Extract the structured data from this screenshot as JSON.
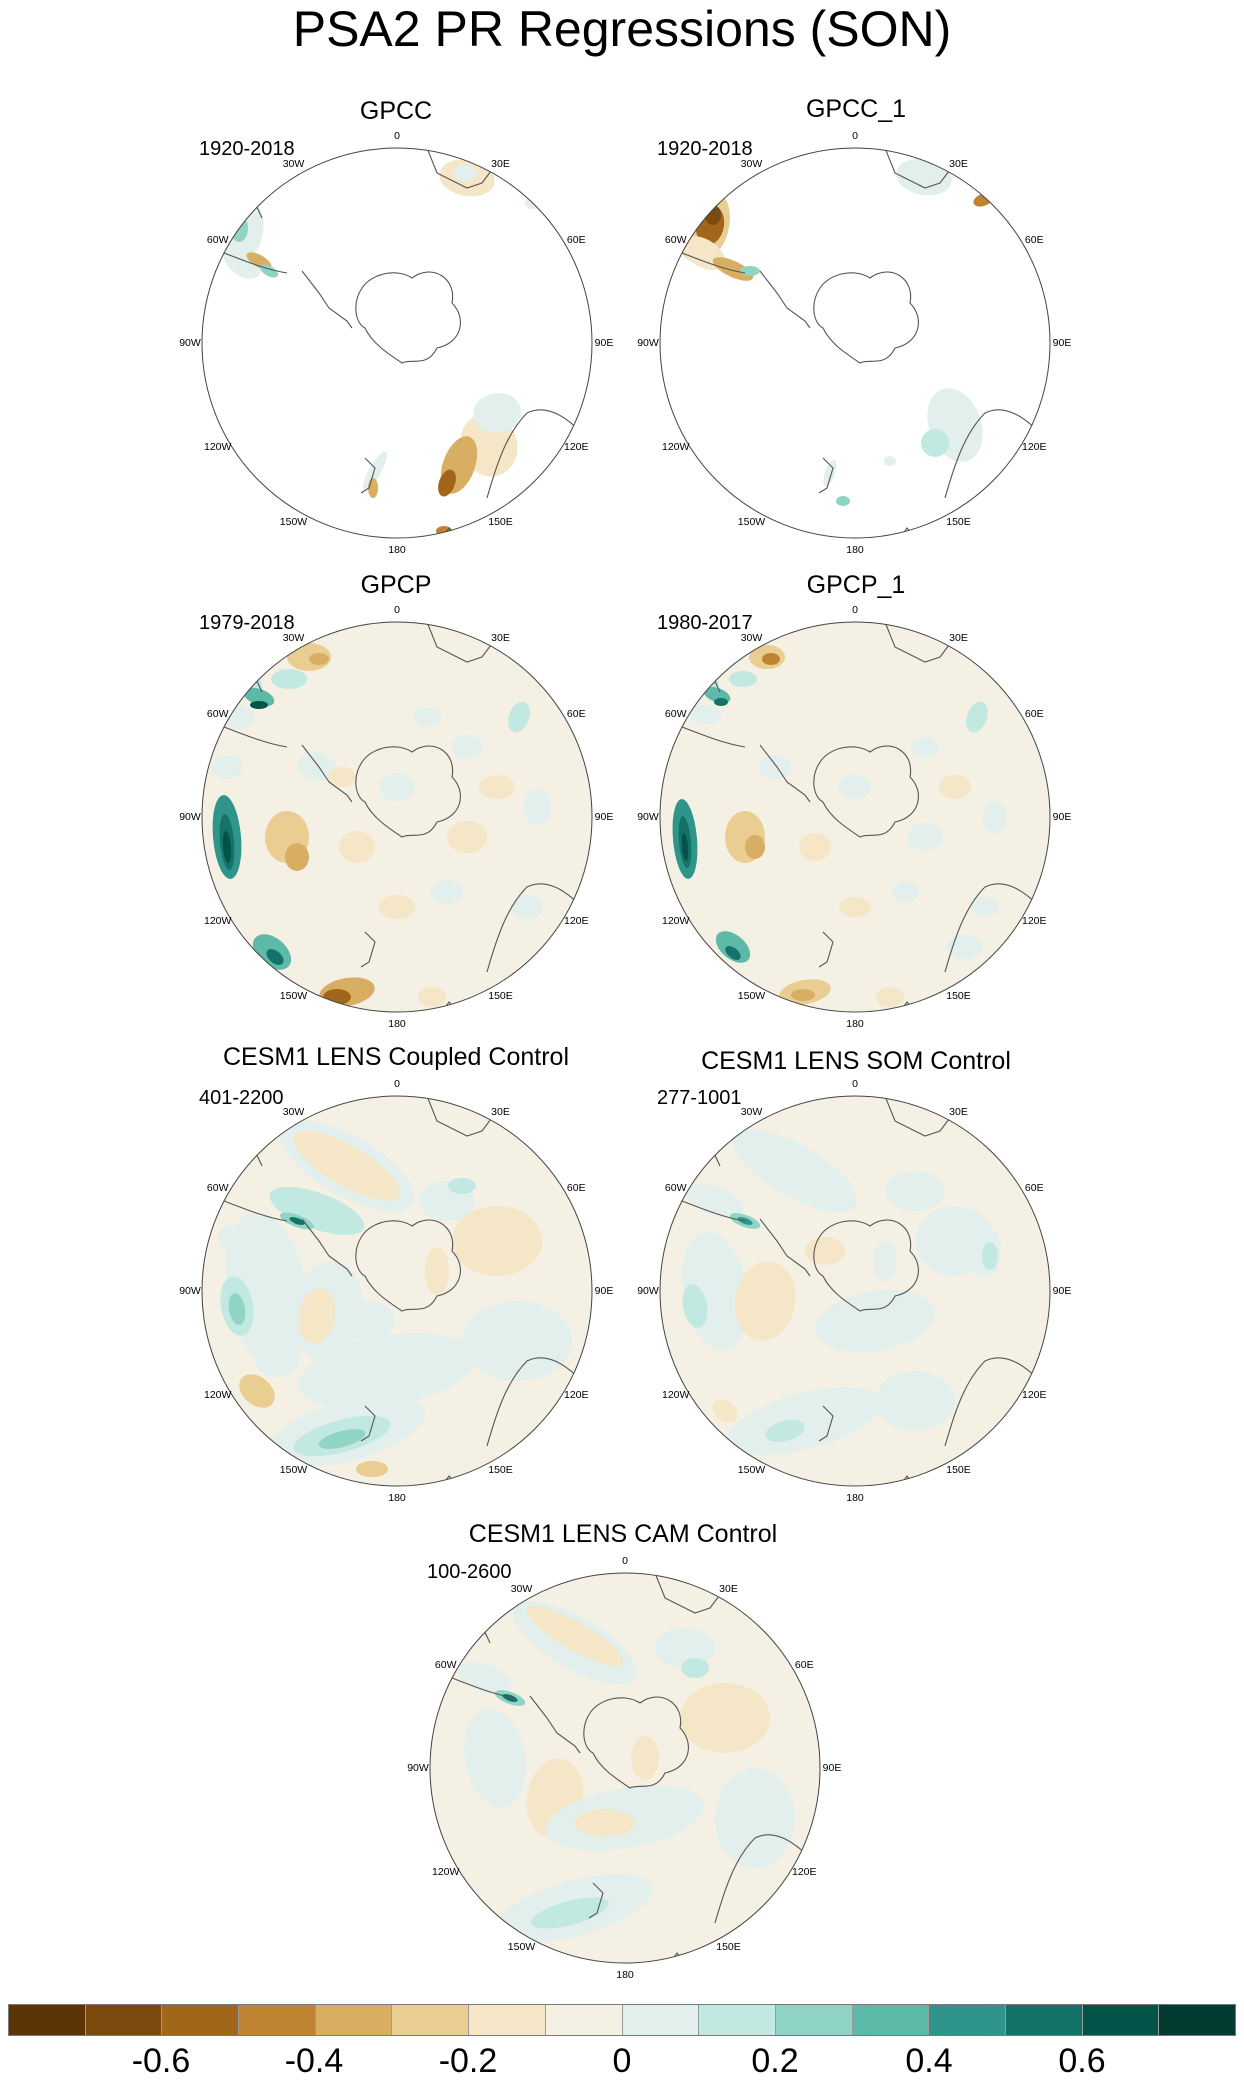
{
  "title": "PSA2 PR Regressions (SON)",
  "longitude_labels": [
    "0",
    "30E",
    "60E",
    "90E",
    "120E",
    "150E",
    "180",
    "150W",
    "120W",
    "90W",
    "60W",
    "30W"
  ],
  "panels": [
    {
      "id": "gpcc",
      "title": "GPCC",
      "period": "1920-2018",
      "field": "gpcc"
    },
    {
      "id": "gpcc-1",
      "title": "GPCC_1",
      "period": "1920-2018",
      "field": "gpcc1"
    },
    {
      "id": "gpcp",
      "title": "GPCP",
      "period": "1979-2018",
      "field": "gpcp"
    },
    {
      "id": "gpcp-1",
      "title": "GPCP_1",
      "period": "1980-2017",
      "field": "gpcp1"
    },
    {
      "id": "cesm-coupled",
      "title": "CESM1 LENS Coupled Control",
      "period": "401-2200",
      "field": "coupled"
    },
    {
      "id": "cesm-som",
      "title": "CESM1 LENS SOM Control",
      "period": "277-1001",
      "field": "som"
    },
    {
      "id": "cesm-cam",
      "title": "CESM1 LENS CAM Control",
      "period": "100-2600",
      "field": "cam"
    }
  ],
  "colorbar": {
    "colors": [
      "#5b3506",
      "#7d4a0e",
      "#a2661b",
      "#c08332",
      "#d8ae63",
      "#eacd90",
      "#f4e6c6",
      "#f5f0e4",
      "#e2efec",
      "#c1e8e1",
      "#8fd4c5",
      "#5db9a8",
      "#2f958a",
      "#147368",
      "#035448",
      "#013a31"
    ],
    "tick_labels": [
      "-0.6",
      "-0.4",
      "-0.2",
      "0",
      "0.2",
      "0.4",
      "0.6"
    ]
  }
}
